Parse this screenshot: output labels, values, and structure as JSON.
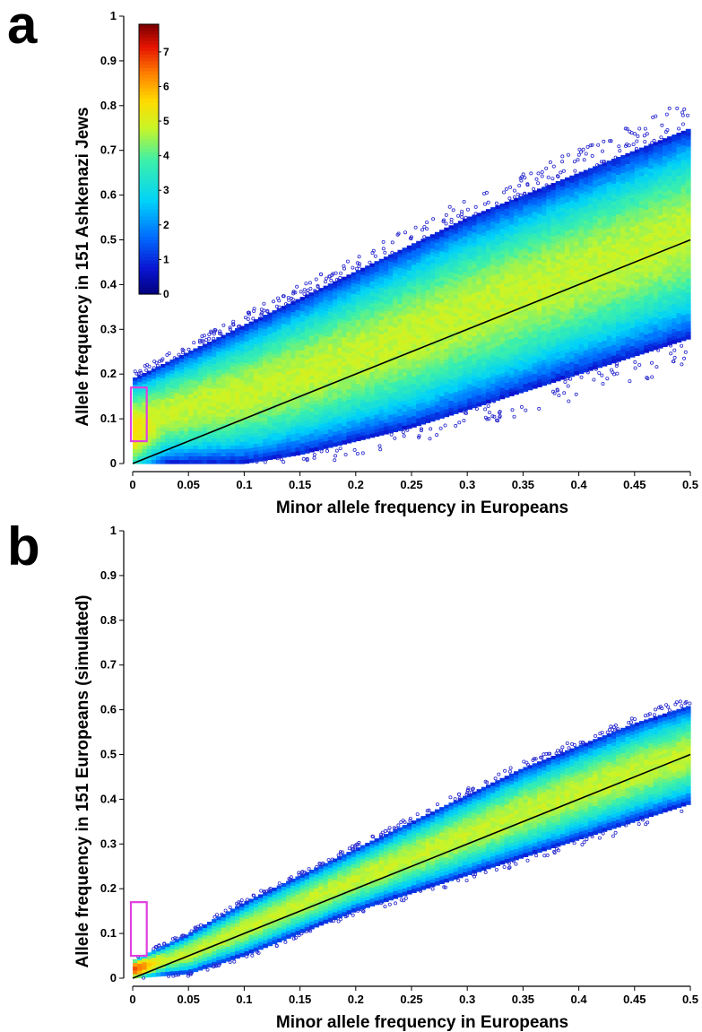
{
  "chart_data": [
    {
      "panel": "a",
      "type": "heatmap",
      "xlabel": "Minor allele frequency in Europeans",
      "ylabel": "Allele frequency in 151 Ashkenazi Jews",
      "xlim": [
        0,
        0.5
      ],
      "ylim": [
        0,
        1
      ],
      "x_ticks": [
        "0",
        "0.05",
        "0.1",
        "0.15",
        "0.2",
        "0.25",
        "0.3",
        "0.35",
        "0.4",
        "0.45",
        "0.5"
      ],
      "y_ticks": [
        "0",
        "0.1",
        "0.2",
        "0.3",
        "0.4",
        "0.5",
        "0.6",
        "0.7",
        "0.8",
        "0.9",
        "1"
      ],
      "density_band": {
        "x": [
          0.0,
          0.05,
          0.1,
          0.15,
          0.2,
          0.25,
          0.3,
          0.35,
          0.4,
          0.45,
          0.5
        ],
        "upper": [
          0.19,
          0.25,
          0.31,
          0.37,
          0.43,
          0.49,
          0.55,
          0.6,
          0.65,
          0.7,
          0.75
        ],
        "lower": [
          0.0,
          0.0,
          0.0,
          0.02,
          0.05,
          0.08,
          0.12,
          0.16,
          0.2,
          0.24,
          0.28
        ]
      },
      "reference_line": {
        "x": [
          0,
          0.5
        ],
        "y": [
          0,
          0.5
        ]
      },
      "highlight_box": {
        "x": [
          0.0,
          0.011
        ],
        "y": [
          0.05,
          0.17
        ],
        "color": "#e040e0"
      },
      "colorbar": {
        "min": 0,
        "max": 7.8,
        "ticks": [
          "0",
          "1",
          "2",
          "3",
          "4",
          "5",
          "6",
          "7"
        ]
      },
      "grid": false
    },
    {
      "panel": "b",
      "type": "heatmap",
      "xlabel": "Minor allele frequency in Europeans",
      "ylabel": "Allele frequency in 151 Europeans (simulated)",
      "xlim": [
        0,
        0.5
      ],
      "ylim": [
        0,
        1
      ],
      "x_ticks": [
        "0",
        "0.05",
        "0.1",
        "0.15",
        "0.2",
        "0.25",
        "0.3",
        "0.35",
        "0.4",
        "0.45",
        "0.5"
      ],
      "y_ticks": [
        "0",
        "0.1",
        "0.2",
        "0.3",
        "0.4",
        "0.5",
        "0.6",
        "0.7",
        "0.8",
        "0.9",
        "1"
      ],
      "density_band": {
        "x": [
          0.0,
          0.05,
          0.1,
          0.15,
          0.2,
          0.25,
          0.3,
          0.35,
          0.4,
          0.45,
          0.5
        ],
        "upper": [
          0.04,
          0.1,
          0.17,
          0.23,
          0.29,
          0.35,
          0.41,
          0.47,
          0.52,
          0.57,
          0.61
        ],
        "lower": [
          0.0,
          0.01,
          0.05,
          0.1,
          0.15,
          0.19,
          0.23,
          0.27,
          0.31,
          0.35,
          0.39
        ]
      },
      "reference_line": {
        "x": [
          0,
          0.5
        ],
        "y": [
          0,
          0.5
        ]
      },
      "highlight_box": {
        "x": [
          0.0,
          0.011
        ],
        "y": [
          0.05,
          0.17
        ],
        "color": "#e040e0"
      },
      "grid": false
    }
  ]
}
